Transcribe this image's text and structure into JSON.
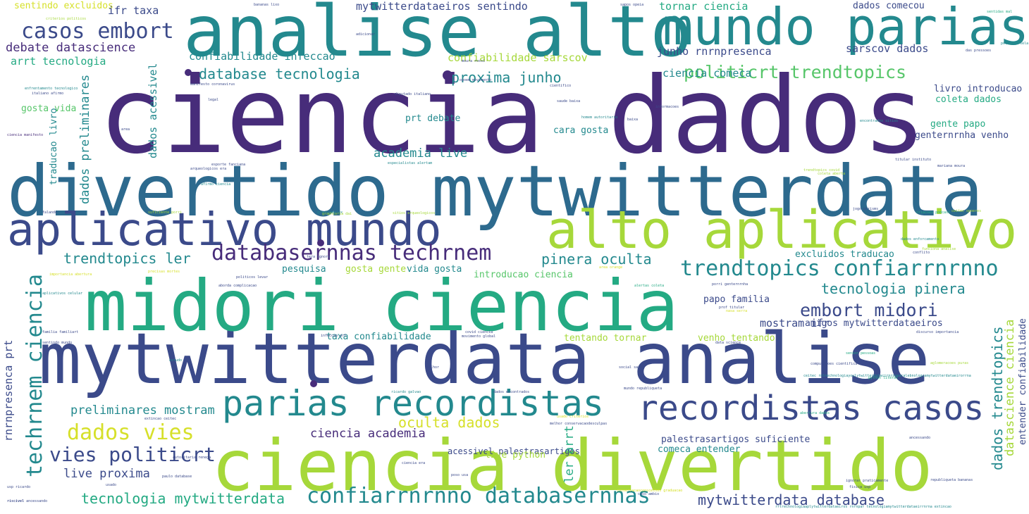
{
  "palette": {
    "purple": "#472c7a",
    "indigo": "#3b4a8a",
    "blue": "#2d6a8e",
    "teal": "#23898e",
    "green": "#24aa83",
    "lightgreen": "#57c66a",
    "lime": "#a6d83a",
    "yellow": "#d6e02a",
    "background": "#ffffff"
  },
  "words": [
    {
      "text": "ciencia dados"
    },
    {
      "text": "divertido mytwitterdata"
    },
    {
      "text": "mytwitterdata analise"
    },
    {
      "text": "midori ciencia"
    },
    {
      "text": "ciencia divertido"
    },
    {
      "text": "analise alto"
    },
    {
      "text": "mundo parias"
    },
    {
      "text": "aplicativo mundo"
    },
    {
      "text": "alto aplicativo"
    },
    {
      "text": "parias recordistas"
    },
    {
      "text": "recordistas casos"
    },
    {
      "text": "confiarrnrnno databasernnas"
    },
    {
      "text": "trendtopics confiarrnrnno"
    },
    {
      "text": "databasernnas techrnem"
    },
    {
      "text": "casos embort"
    },
    {
      "text": "embort midori"
    },
    {
      "text": "dados vies"
    },
    {
      "text": "vies politicrt"
    },
    {
      "text": "politicrt trendtopics"
    },
    {
      "text": "tecnologia mytwitterdata"
    },
    {
      "text": "mytwitterdata database"
    },
    {
      "text": "trendtopics ler"
    },
    {
      "text": "database tecnologia"
    },
    {
      "text": "proxima junho"
    },
    {
      "text": "pinera oculta"
    },
    {
      "text": "tecnologia pinera"
    },
    {
      "text": "oculta dados"
    },
    {
      "text": "preliminares mostram"
    },
    {
      "text": "ciencia academia"
    },
    {
      "text": "live proxima"
    },
    {
      "text": "academia live"
    },
    {
      "text": "debate datascience"
    },
    {
      "text": "arrt tecnologia"
    },
    {
      "text": "confiabilidade infeccao"
    },
    {
      "text": "confiabilidade sarscov"
    },
    {
      "text": "junho rnrnpresenca"
    },
    {
      "text": "sarscov dados"
    },
    {
      "text": "ciencia comeca"
    },
    {
      "text": "tornar ciencia"
    },
    {
      "text": "dados comecou"
    },
    {
      "text": "sentindo excluidos"
    },
    {
      "text": "ifr taxa"
    },
    {
      "text": "mytwitterdataeiros sentindo"
    },
    {
      "text": "livro introducao"
    },
    {
      "text": "coleta dados"
    },
    {
      "text": "gente papo"
    },
    {
      "text": "genternrnha venho"
    },
    {
      "text": "cara gosta"
    },
    {
      "text": "prt debate"
    },
    {
      "text": "gosta vida"
    },
    {
      "text": "excluidos traducao"
    },
    {
      "text": "pesquisa"
    },
    {
      "text": "gosta gente"
    },
    {
      "text": "vida gosta"
    },
    {
      "text": "introducao ciencia"
    },
    {
      "text": "papo familia"
    },
    {
      "text": "mostram ifr"
    },
    {
      "text": "amigos mytwitterdataeiros"
    },
    {
      "text": "taxa confiabilidade"
    },
    {
      "text": "tentando tornar"
    },
    {
      "text": "venho tentando"
    },
    {
      "text": "acessivel palestrasartigos"
    },
    {
      "text": "comeca entender"
    },
    {
      "text": "palestrasartigos suficiente"
    },
    {
      "text": "live python"
    },
    {
      "text": "techrnem ciencia"
    },
    {
      "text": "rnrnpresenca prt"
    },
    {
      "text": "dados acessivel"
    },
    {
      "text": "dados preliminares"
    },
    {
      "text": "traducao livro"
    },
    {
      "text": "ler arrt"
    },
    {
      "text": "dados trendtopics"
    },
    {
      "text": "datascience ciencia"
    },
    {
      "text": "entender confiabilidade"
    }
  ],
  "tiny_words": [
    {
      "text": "infeccao art"
    },
    {
      "text": "movimento global"
    },
    {
      "text": "opoem movimento"
    },
    {
      "text": "dados encontrados"
    },
    {
      "text": "ricardo galvao"
    },
    {
      "text": "covid ciencia"
    },
    {
      "text": "sentindo mundo"
    },
    {
      "text": "estudo"
    },
    {
      "text": "extincao ceitec"
    },
    {
      "text": "riscivel"
    },
    {
      "text": "familia familiart"
    },
    {
      "text": "aplicativos celular"
    },
    {
      "text": "falando"
    },
    {
      "text": "importancia abertura"
    },
    {
      "text": "precisas mortes"
    },
    {
      "text": "politicos levar"
    },
    {
      "text": "aborda complicacao"
    },
    {
      "text": "alertas coleta"
    },
    {
      "text": "porri genternrnha"
    },
    {
      "text": "mundo republiqueta"
    },
    {
      "text": "abertura dados"
    },
    {
      "text": "compulacoes cientifica"
    },
    {
      "text": "data science"
    },
    {
      "text": "aglomeracoes puras"
    },
    {
      "text": "senior pessoas"
    },
    {
      "text": "fisica usp"
    },
    {
      "text": "ignorar praticamente"
    },
    {
      "text": "usp ricardo"
    },
    {
      "text": "riscivel ancessando"
    },
    {
      "text": "coleta aberta"
    },
    {
      "text": "mariana moura"
    },
    {
      "text": "titular instituto"
    },
    {
      "text": "trendtopics covid"
    },
    {
      "text": "especialistas alertam"
    },
    {
      "text": "esporte fanciana"
    },
    {
      "text": "graphcomplex"
    },
    {
      "text": "arqueologicos era"
    },
    {
      "text": "cientifico"
    },
    {
      "text": "saude baixa"
    },
    {
      "text": "homem autoritario"
    },
    {
      "text": "informacoes"
    },
    {
      "text": "encontrados sitios"
    },
    {
      "text": "diputado italiano"
    },
    {
      "text": "manifesto coronavirus"
    },
    {
      "text": "baixa"
    },
    {
      "text": "bananas lixo"
    },
    {
      "text": "sapos opeia"
    },
    {
      "text": "moura rossi"
    },
    {
      "text": "sentidas mal"
    },
    {
      "text": "politica sela"
    },
    {
      "text": "das pressoes"
    },
    {
      "text": "adicionar"
    },
    {
      "text": "criterios politicos"
    },
    {
      "text": "enfrentamento tecnologico"
    },
    {
      "text": "italiano afirmo"
    },
    {
      "text": "ciencia manifesto"
    },
    {
      "text": "legal"
    },
    {
      "text": "area"
    },
    {
      "text": "graphcaria dai"
    },
    {
      "text": "sitios arqueologicos"
    },
    {
      "text": "suficiente porri"
    },
    {
      "text": "afirmo ciencia"
    },
    {
      "text": "jogo porisms"
    },
    {
      "text": "criacoes podcast"
    },
    {
      "text": "ceitec opoeres"
    },
    {
      "text": "dados enforcamento"
    },
    {
      "text": "funciona analise"
    },
    {
      "text": "area orange"
    },
    {
      "text": "tera ignora"
    },
    {
      "text": "conflito"
    },
    {
      "text": "nasa serra"
    },
    {
      "text": "prof titular"
    },
    {
      "text": "python literal"
    },
    {
      "text": "melhor"
    },
    {
      "text": "social sapos"
    },
    {
      "text": "autoritaria renega"
    },
    {
      "text": "paulo database"
    },
    {
      "text": "rrtrechnologiaaplytwitterdataeiros rnrnpar tecnologiamytwitterdataeirrnrna extincao"
    },
    {
      "text": "ceitec rnlnechnologiayoulytwitterdatacirnrnaparalebnologiamytwitterdataeirorrna"
    },
    {
      "text": "usado criterios"
    },
    {
      "text": "melhor conservacaodesculpas"
    },
    {
      "text": "republiqueta bananas"
    },
    {
      "text": "discurso importancia"
    },
    {
      "text": "caso ambio"
    },
    {
      "text": "poso usa"
    },
    {
      "text": "ancessando"
    },
    {
      "text": "conservacaoconscelhos graduacao"
    },
    {
      "text": "ciencia era"
    },
    {
      "text": "usado"
    }
  ]
}
